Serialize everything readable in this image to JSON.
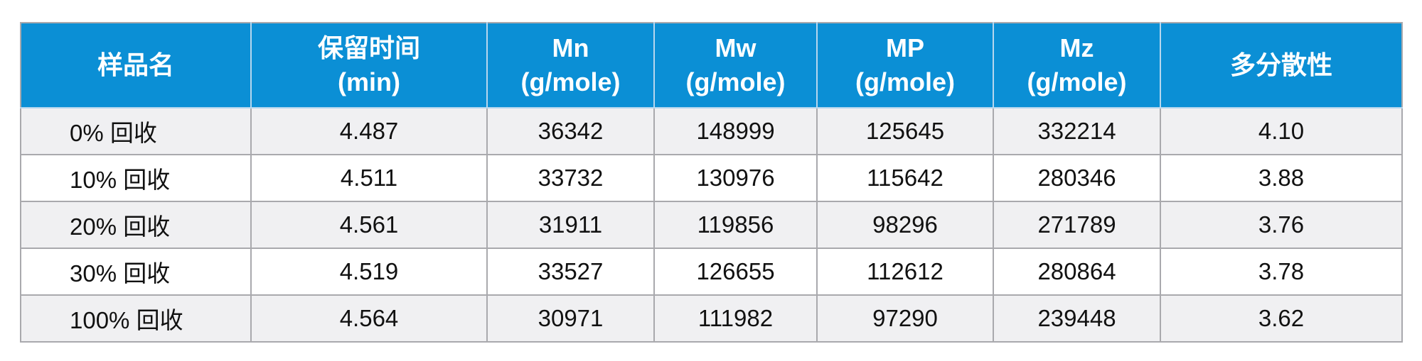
{
  "table": {
    "header": [
      [
        "样品名"
      ],
      [
        "保留时间",
        "(min)"
      ],
      [
        "Mn",
        "(g/mole)"
      ],
      [
        "Mw",
        "(g/mole)"
      ],
      [
        "MP",
        "(g/mole)"
      ],
      [
        "Mz",
        "(g/mole)"
      ],
      [
        "多分散性"
      ]
    ],
    "rows": [
      [
        "0% 回收",
        "4.487",
        "36342",
        "148999",
        "125645",
        "332214",
        "4.10"
      ],
      [
        "10% 回收",
        "4.511",
        "33732",
        "130976",
        "115642",
        "280346",
        "3.88"
      ],
      [
        "20% 回收",
        "4.561",
        "31911",
        "119856",
        "98296",
        "271789",
        "3.76"
      ],
      [
        "30% 回收",
        "4.519",
        "33527",
        "126655",
        "112612",
        "280864",
        "3.78"
      ],
      [
        "100% 回收",
        "4.564",
        "30971",
        "111982",
        "97290",
        "239448",
        "3.62"
      ]
    ]
  }
}
